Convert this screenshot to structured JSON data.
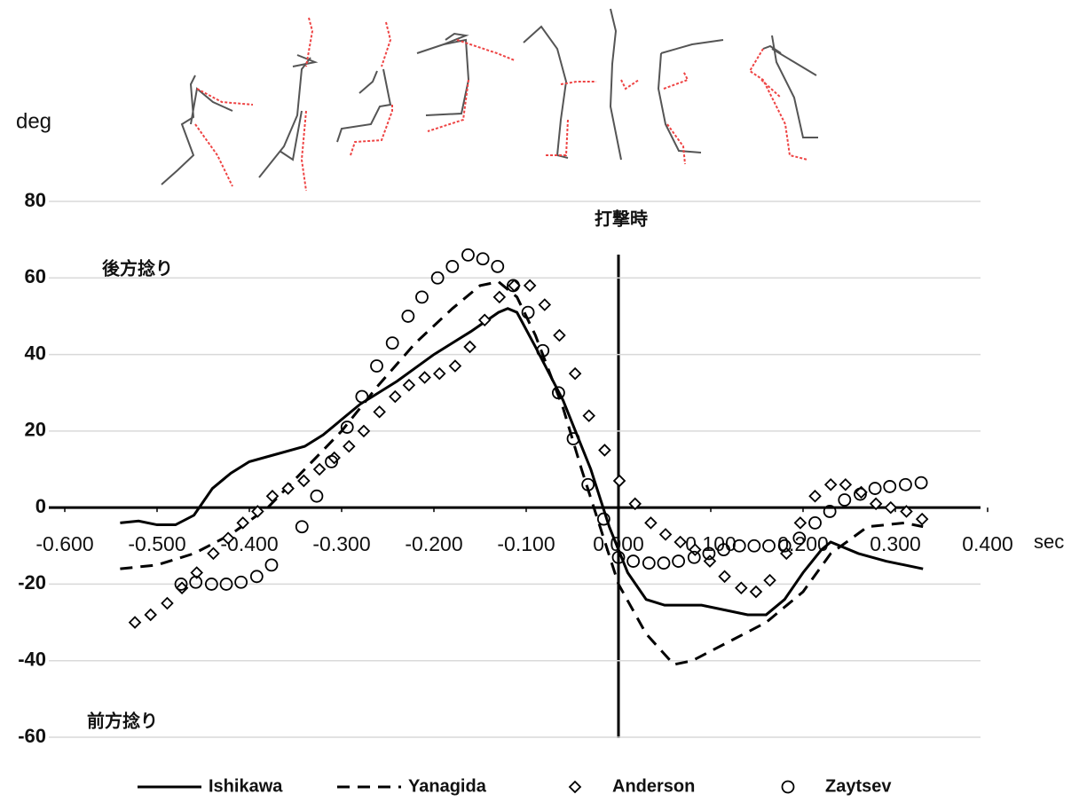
{
  "chart_data": {
    "type": "line",
    "y_label": "deg",
    "x_label": "sec",
    "annotations": [
      "打撃時",
      "後方捻り",
      "前方捻り"
    ],
    "xlim": [
      -0.6,
      0.4
    ],
    "xticks": [
      {
        "value": -0.6,
        "label": "-0.600"
      },
      {
        "value": -0.5,
        "label": "-0.500"
      },
      {
        "value": -0.4,
        "label": "-0.400"
      },
      {
        "value": -0.3,
        "label": "-0.300"
      },
      {
        "value": -0.2,
        "label": "-0.200"
      },
      {
        "value": -0.1,
        "label": "-0.100"
      },
      {
        "value": 0,
        "label": "0.000"
      },
      {
        "value": 0.1,
        "label": "0.100"
      },
      {
        "value": 0.2,
        "label": "0.200"
      },
      {
        "value": 0.3,
        "label": "0.300"
      },
      {
        "value": 0.4,
        "label": "0.400"
      }
    ],
    "ylim": [
      -60,
      80
    ],
    "yticks": [
      80,
      60,
      40,
      20,
      0,
      -20,
      -40,
      -60
    ],
    "grid": true,
    "series": [
      {
        "name": "Ishikawa",
        "color": "#000000",
        "marker": "none",
        "dash": "solid",
        "x": [
          -0.54,
          -0.52,
          -0.5,
          -0.48,
          -0.46,
          -0.44,
          -0.42,
          -0.4,
          -0.37,
          -0.34,
          -0.32,
          -0.28,
          -0.24,
          -0.2,
          -0.16,
          -0.13,
          -0.12,
          -0.11,
          -0.09,
          -0.06,
          -0.03,
          -0.01,
          0.01,
          0.03,
          0.05,
          0.09,
          0.12,
          0.14,
          0.16,
          0.18,
          0.2,
          0.22,
          0.23,
          0.26,
          0.29,
          0.33
        ],
        "values": [
          -4,
          -3.5,
          -4.5,
          -4.5,
          -2,
          5,
          9,
          12,
          14,
          16,
          19,
          27,
          33,
          40,
          46,
          51,
          52,
          51,
          42,
          28,
          10,
          -5,
          -17,
          -24,
          -25.5,
          -25.5,
          -27,
          -28,
          -28,
          -24,
          -17,
          -11,
          -9,
          -12,
          -14,
          -16
        ]
      },
      {
        "name": "Yanagida",
        "color": "#000000",
        "marker": "none",
        "dash": "dashed",
        "x": [
          -0.54,
          -0.5,
          -0.46,
          -0.42,
          -0.38,
          -0.34,
          -0.3,
          -0.26,
          -0.22,
          -0.18,
          -0.15,
          -0.13,
          -0.11,
          -0.09,
          -0.06,
          -0.04,
          -0.02,
          0,
          0.03,
          0.06,
          0.08,
          0.12,
          0.16,
          0.2,
          0.23,
          0.27,
          0.31,
          0.33
        ],
        "values": [
          -16,
          -15,
          -12,
          -7,
          0,
          10,
          20,
          32,
          43,
          52,
          58,
          59,
          55,
          45,
          26,
          10,
          -5,
          -20,
          -33,
          -41,
          -40,
          -35,
          -30,
          -22,
          -12,
          -5,
          -4,
          -5
        ]
      },
      {
        "name": "Anderson",
        "color": "#000000",
        "marker": "diamond",
        "dash": "none",
        "x": [
          -0.524,
          -0.507,
          -0.489,
          -0.473,
          -0.457,
          -0.439,
          -0.423,
          -0.407,
          -0.391,
          -0.375,
          -0.358,
          -0.341,
          -0.324,
          -0.308,
          -0.292,
          -0.276,
          -0.259,
          -0.242,
          -0.227,
          -0.21,
          -0.194,
          -0.177,
          -0.161,
          -0.145,
          -0.129,
          -0.113,
          -0.096,
          -0.08,
          -0.064,
          -0.047,
          -0.032,
          -0.015,
          0.001,
          0.018,
          0.035,
          0.051,
          0.067,
          0.083,
          0.099,
          0.115,
          0.133,
          0.149,
          0.164,
          0.182,
          0.197,
          0.213,
          0.23,
          0.246,
          0.263,
          0.279,
          0.295,
          0.312,
          0.329
        ],
        "values": [
          -30,
          -28,
          -25,
          -21,
          -17,
          -12,
          -8,
          -4,
          -1,
          3,
          5,
          7,
          10,
          13,
          16,
          20,
          25,
          29,
          32,
          34,
          35,
          37,
          42,
          49,
          55,
          58,
          58,
          53,
          45,
          35,
          24,
          15,
          7,
          1,
          -4,
          -7,
          -9,
          -11,
          -14,
          -18,
          -21,
          -22,
          -19,
          -12,
          -4,
          3,
          6,
          6,
          4,
          1,
          0,
          -1,
          -3
        ]
      },
      {
        "name": "Zaytsev",
        "color": "#000000",
        "marker": "circle",
        "dash": "none",
        "x": [
          -0.474,
          -0.458,
          -0.441,
          -0.425,
          -0.409,
          -0.392,
          -0.376,
          -0.343,
          -0.327,
          -0.311,
          -0.294,
          -0.278,
          -0.262,
          -0.245,
          -0.228,
          -0.213,
          -0.196,
          -0.18,
          -0.163,
          -0.147,
          -0.131,
          -0.114,
          -0.098,
          -0.082,
          -0.065,
          -0.049,
          -0.033,
          -0.016,
          0,
          0.016,
          0.033,
          0.049,
          0.065,
          0.082,
          0.098,
          0.114,
          0.131,
          0.147,
          0.163,
          0.18,
          0.196,
          0.213,
          0.229,
          0.245,
          0.262,
          0.278,
          0.294,
          0.311,
          0.328
        ],
        "values": [
          -20,
          -19.5,
          -20,
          -20,
          -19.5,
          -18,
          -15,
          -5,
          3,
          12,
          21,
          29,
          37,
          43,
          50,
          55,
          60,
          63,
          66,
          65,
          63,
          58,
          51,
          41,
          30,
          18,
          6,
          -3,
          -13,
          -14,
          -14.5,
          -14.5,
          -14,
          -13,
          -12,
          -11,
          -10,
          -10,
          -10,
          -10,
          -8,
          -4,
          -1,
          2,
          3.5,
          5,
          5.5,
          6,
          6.5
        ]
      }
    ]
  }
}
